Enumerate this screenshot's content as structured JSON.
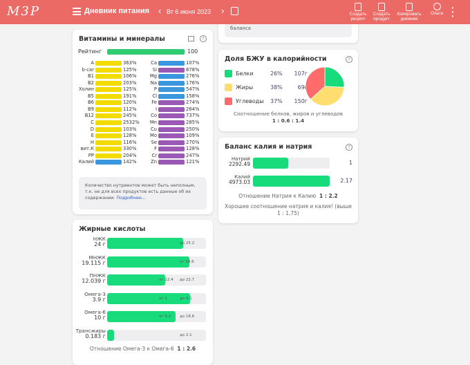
{
  "header": {
    "logo": "М3Р",
    "title": "Дневник питания",
    "date": "Вт 6 июня 2023",
    "actions": [
      {
        "label": "Создать рецепт",
        "icon": "recipe-icon"
      },
      {
        "label": "Создать продукт",
        "icon": "product-icon"
      },
      {
        "label": "Копировать дневник",
        "icon": "copy-icon"
      },
      {
        "label": "Ольга",
        "icon": "user-icon"
      }
    ],
    "color": "#ec6a66"
  },
  "top_card": {
    "text": "баланса"
  },
  "vitamins": {
    "title": "Витамины и минералы",
    "rating_label": "Рейтинг",
    "rating": "100",
    "left": [
      [
        "A",
        "363%",
        "#f2dc00"
      ],
      [
        "b-car",
        "125%",
        "#f2dc00"
      ],
      [
        "B1",
        "106%",
        "#f2dc00"
      ],
      [
        "B2",
        "203%",
        "#f2dc00"
      ],
      [
        "Холин",
        "125%",
        "#f2dc00"
      ],
      [
        "B5",
        "191%",
        "#f2dc00"
      ],
      [
        "B6",
        "120%",
        "#f2dc00"
      ],
      [
        "B9",
        "112%",
        "#f2dc00"
      ],
      [
        "B12",
        "245%",
        "#f2dc00"
      ],
      [
        "C",
        "2532%",
        "#f2dc00"
      ],
      [
        "D",
        "103%",
        "#f2dc00"
      ],
      [
        "E",
        "128%",
        "#f2dc00"
      ],
      [
        "H",
        "116%",
        "#f2dc00"
      ],
      [
        "вит.К",
        "330%",
        "#f2dc00"
      ],
      [
        "PP",
        "204%",
        "#f2dc00"
      ],
      [
        "Калий",
        "142%",
        "#3a97dd"
      ]
    ],
    "right": [
      [
        "Ca",
        "107%",
        "#3a97dd"
      ],
      [
        "Si",
        "878%",
        "#9b59b6"
      ],
      [
        "Mg",
        "276%",
        "#3a97dd"
      ],
      [
        "Na",
        "176%",
        "#3a97dd"
      ],
      [
        "P",
        "547%",
        "#3a97dd"
      ],
      [
        "Cl",
        "158%",
        "#3a97dd"
      ],
      [
        "Fe",
        "274%",
        "#9b59b6"
      ],
      [
        "I",
        "264%",
        "#9b59b6"
      ],
      [
        "Co",
        "737%",
        "#9b59b6"
      ],
      [
        "Mn",
        "285%",
        "#9b59b6"
      ],
      [
        "Cu",
        "250%",
        "#9b59b6"
      ],
      [
        "Mo",
        "109%",
        "#9b59b6"
      ],
      [
        "Se",
        "270%",
        "#9b59b6"
      ],
      [
        "F",
        "128%",
        "#9b59b6"
      ],
      [
        "Cr",
        "247%",
        "#9b59b6"
      ],
      [
        "Zn",
        "121%",
        "#9b59b6"
      ]
    ],
    "note": "Количество нутриентов может быть неполным, т.к. не для всех продуктов есть данные об их содержании.",
    "note_link": "Подробнее..."
  },
  "fatty": {
    "title": "Жирные кислоты",
    "rows": [
      {
        "name": "НЖК",
        "value": "24 г",
        "fill": 0.77,
        "marks": [
          "до 25.2"
        ]
      },
      {
        "name": "МНЖК",
        "value": "19.115 г",
        "fill": 0.83,
        "marks": [
          "от 18.6"
        ]
      },
      {
        "name": "ПНЖК",
        "value": "12.039 г",
        "fill": 0.59,
        "marks": [
          "от 12.4",
          "до 22.7"
        ]
      },
      {
        "name": "Омега-3",
        "value": "3.9 г",
        "fill": 0.84,
        "marks": [
          "от 1",
          "до 4.1"
        ]
      },
      {
        "name": "Омега-6",
        "value": "10 г",
        "fill": 0.69,
        "marks": [
          "от 5.2",
          "до 18.6"
        ]
      },
      {
        "name": "Трансжиры",
        "value": "0.183 г",
        "fill": 0.07,
        "marks": [
          "до 2.1"
        ]
      }
    ],
    "ratio_label": "Отношение Омега-3 к Омега-6",
    "ratio": "1 : 2.6"
  },
  "bju": {
    "title": "Доля БЖУ в калорийности",
    "items": [
      {
        "name": "Белки",
        "pct": "26%",
        "grams": "107г",
        "color": "#18dc7c",
        "share": 26
      },
      {
        "name": "Жиры",
        "pct": "38%",
        "grams": "69г",
        "color": "#ffdd6e",
        "share": 38
      },
      {
        "name": "Углеводы",
        "pct": "37%",
        "grams": "150г",
        "color": "#ff6b6b",
        "share": 37
      }
    ],
    "ratio_label": "Соотношение белков, жиров и углеводов",
    "ratio": "1 : 0.6 : 1.4"
  },
  "kna": {
    "title": "Баланс калия и натрия",
    "rows": [
      {
        "name": "Натрий",
        "value": "2292.49",
        "fill": 0.46,
        "ratio": "1"
      },
      {
        "name": "Калий",
        "value": "4973.03",
        "fill": 1.0,
        "ratio": "2.17"
      }
    ],
    "ratio_label": "Отношение Натрия к Калию",
    "ratio": "1 : 2.2",
    "message": "Хорошее соотношение натрия и калия! (выше 1 : 1,75)"
  }
}
